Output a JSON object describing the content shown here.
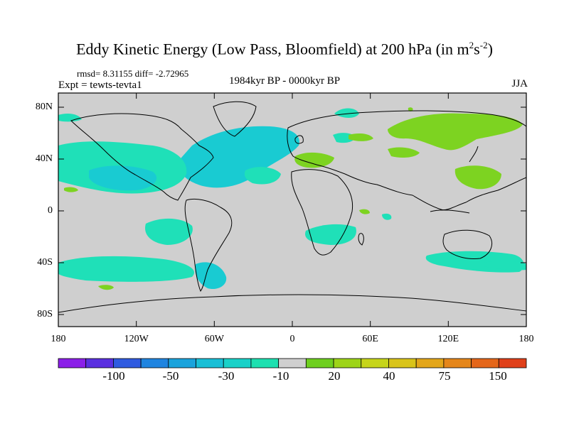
{
  "title": {
    "main": "Eddy Kinetic Energy (Low Pass, Bloomfield) at 200 hPa (in m",
    "exp1": "2",
    "mid": "s",
    "exp2": "-2",
    "end": ")"
  },
  "stats": "rmsd= 8.31155 diff= -2.72965",
  "experiment": "Expt = tewts-tevta1",
  "period": "1984kyr BP - 0000kyr BP",
  "season": "JJA",
  "lat_labels": [
    "80N",
    "40N",
    "0",
    "40S",
    "80S"
  ],
  "lon_labels": [
    "180",
    "120W",
    "60W",
    "0",
    "60E",
    "120E",
    "180"
  ],
  "colorbar": {
    "labels": [
      "-100",
      "-50",
      "-30",
      "-10",
      "20",
      "40",
      "75",
      "150"
    ],
    "colors": [
      "#8b1fe8",
      "#5a2fe0",
      "#2f5be0",
      "#1f84e0",
      "#1aa3dc",
      "#19bfd6",
      "#19d1c8",
      "#1de0b0",
      "#cfcfcf",
      "#6ecf1f",
      "#9dd418",
      "#c6d51a",
      "#d9c41a",
      "#e3a61a",
      "#e5861a",
      "#e4661a",
      "#e0401a"
    ]
  },
  "colors": {
    "land_ocean": "#cfcfcf",
    "cyan": "#19cbd2",
    "teal": "#1fe0b8",
    "green": "#7dd321",
    "dark_green": "#5fc81e"
  }
}
